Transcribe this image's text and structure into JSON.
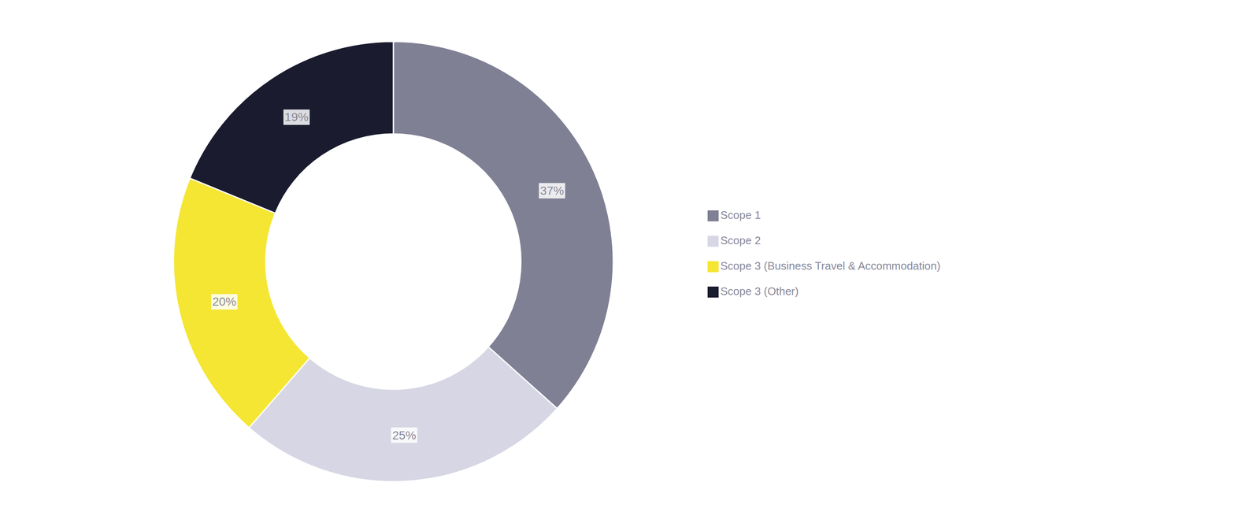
{
  "chart_data": {
    "type": "pie",
    "categories": [
      "Scope 1",
      "Scope 2",
      "Scope 3 (Business Travel & Accommodation)",
      "Scope 3 (Other)"
    ],
    "values": [
      37,
      25,
      20,
      19
    ],
    "value_labels": [
      "37%",
      "25%",
      "20%",
      "19%"
    ],
    "colors": [
      "#7f8094",
      "#d6d6e4",
      "#f5e633",
      "#1a1b2e"
    ],
    "data_labels": true,
    "legend": "right"
  }
}
